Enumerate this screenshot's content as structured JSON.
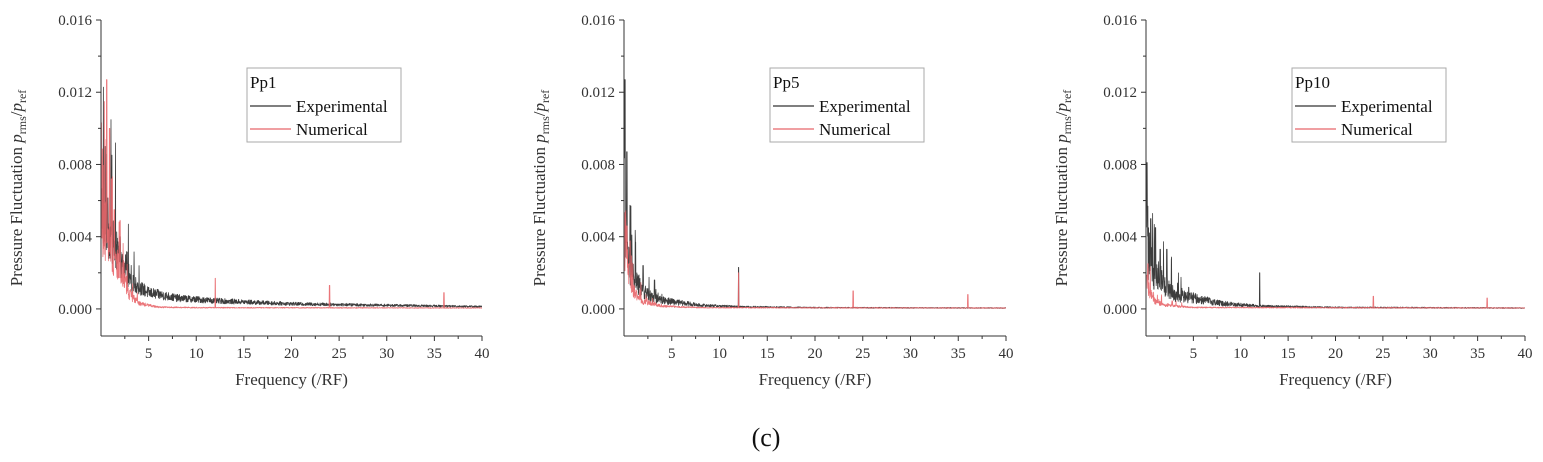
{
  "chart_data": [
    {
      "type": "line",
      "panel": "Pp1",
      "legend_title": "Pp1",
      "legend_position": "top-center",
      "xlabel": "Frequency (/RF)",
      "ylabel_main": "Pressure Fluctuation ",
      "ylabel_p1": "p",
      "ylabel_sub1": "rms",
      "ylabel_slash": "/",
      "ylabel_p2": "p",
      "ylabel_sub2": "ref",
      "xlim": [
        0,
        40
      ],
      "ylim": [
        -0.0015,
        0.016
      ],
      "x_ticks": [
        5,
        10,
        15,
        20,
        25,
        30,
        35,
        40
      ],
      "x_tick_labels": [
        "5",
        "10",
        "15",
        "20",
        "25",
        "30",
        "35",
        "40"
      ],
      "y_ticks": [
        0,
        0.004,
        0.008,
        0.012,
        0.016
      ],
      "y_tick_labels": [
        "0.000",
        "0.004",
        "0.008",
        "0.012",
        "0.016"
      ],
      "series": [
        {
          "name": "Experimental",
          "color": "#333333",
          "base": [
            [
              0.1,
              0.0055
            ],
            [
              0.5,
              0.0045
            ],
            [
              1,
              0.004
            ],
            [
              2,
              0.0027
            ],
            [
              3,
              0.0015
            ],
            [
              5,
              0.0009
            ],
            [
              8,
              0.0006
            ],
            [
              12,
              0.00045
            ],
            [
              20,
              0.00028
            ],
            [
              30,
              0.0002
            ],
            [
              40,
              0.00013
            ]
          ],
          "noise": 0.35,
          "peaks": [
            [
              0.5,
              0.006
            ],
            [
              1.5,
              0.0048
            ],
            [
              2.0,
              0.004
            ],
            [
              2.6,
              0.003
            ]
          ]
        },
        {
          "name": "Numerical",
          "color": "#e8666a",
          "base": [
            [
              0.1,
              0.004
            ],
            [
              0.5,
              0.0045
            ],
            [
              1,
              0.0035
            ],
            [
              2,
              0.0022
            ],
            [
              3,
              0.0008
            ],
            [
              4,
              0.0003
            ],
            [
              6,
              0.0001
            ],
            [
              10,
              7e-05
            ],
            [
              40,
              5e-05
            ]
          ],
          "noise": 0.4,
          "peaks": [
            [
              0.6,
              0.0127
            ],
            [
              0.9,
              0.01
            ],
            [
              1.1,
              0.0072
            ],
            [
              1.4,
              0.0055
            ],
            [
              2.0,
              0.0048
            ],
            [
              12,
              0.0017
            ],
            [
              24,
              0.0013
            ],
            [
              36,
              0.0009
            ]
          ]
        }
      ]
    },
    {
      "type": "line",
      "panel": "Pp5",
      "legend_title": "Pp5",
      "legend_position": "top-center",
      "xlabel": "Frequency (/RF)",
      "ylabel_main": "Pressure Fluctuation ",
      "ylabel_p1": "p",
      "ylabel_sub1": "rms",
      "ylabel_slash": "/",
      "ylabel_p2": "p",
      "ylabel_sub2": "ref",
      "xlim": [
        0,
        40
      ],
      "ylim": [
        -0.0015,
        0.016
      ],
      "x_ticks": [
        5,
        10,
        15,
        20,
        25,
        30,
        35,
        40
      ],
      "x_tick_labels": [
        "5",
        "10",
        "15",
        "20",
        "25",
        "30",
        "35",
        "40"
      ],
      "y_ticks": [
        0,
        0.004,
        0.008,
        0.012,
        0.016
      ],
      "y_tick_labels": [
        "0.000",
        "0.004",
        "0.008",
        "0.012",
        "0.016"
      ],
      "series": [
        {
          "name": "Experimental",
          "color": "#333333",
          "base": [
            [
              0.1,
              0.004
            ],
            [
              0.5,
              0.0025
            ],
            [
              1,
              0.0017
            ],
            [
              2,
              0.001
            ],
            [
              3,
              0.0006
            ],
            [
              5,
              0.0004
            ],
            [
              8,
              0.0002
            ],
            [
              12,
              0.00012
            ],
            [
              20,
              7e-05
            ],
            [
              40,
              5e-05
            ]
          ],
          "noise": 0.45,
          "peaks": [
            [
              0.1,
              0.0127
            ],
            [
              0.3,
              0.0087
            ],
            [
              0.7,
              0.0057
            ],
            [
              1.2,
              0.0037
            ],
            [
              2.0,
              0.0024
            ],
            [
              3.2,
              0.0016
            ],
            [
              12,
              0.0023
            ]
          ]
        },
        {
          "name": "Numerical",
          "color": "#e8666a",
          "base": [
            [
              0.1,
              0.0035
            ],
            [
              0.5,
              0.002
            ],
            [
              1,
              0.001
            ],
            [
              2,
              0.0004
            ],
            [
              4,
              0.00015
            ],
            [
              8,
              7e-05
            ],
            [
              40,
              5e-05
            ]
          ],
          "noise": 0.4,
          "peaks": [
            [
              0.3,
              0.0046
            ],
            [
              12,
              0.002
            ],
            [
              24,
              0.001
            ],
            [
              36,
              0.0008
            ]
          ]
        }
      ]
    },
    {
      "type": "line",
      "panel": "Pp10",
      "legend_title": "Pp10",
      "legend_position": "top-center",
      "xlabel": "Frequency (/RF)",
      "ylabel_main": "Pressure Fluctuation ",
      "ylabel_p1": "p",
      "ylabel_sub1": "rms",
      "ylabel_slash": "/",
      "ylabel_p2": "p",
      "ylabel_sub2": "ref",
      "xlim": [
        0,
        40
      ],
      "ylim": [
        -0.0015,
        0.016
      ],
      "x_ticks": [
        5,
        10,
        15,
        20,
        25,
        30,
        35,
        40
      ],
      "x_tick_labels": [
        "5",
        "10",
        "15",
        "20",
        "25",
        "30",
        "35",
        "40"
      ],
      "y_ticks": [
        0,
        0.004,
        0.008,
        0.012,
        0.016
      ],
      "y_tick_labels": [
        "0.000",
        "0.004",
        "0.008",
        "0.012",
        "0.016"
      ],
      "series": [
        {
          "name": "Experimental",
          "color": "#333333",
          "base": [
            [
              0.1,
              0.0035
            ],
            [
              0.5,
              0.0025
            ],
            [
              1,
              0.002
            ],
            [
              2,
              0.0014
            ],
            [
              3,
              0.0008
            ],
            [
              5,
              0.0006
            ],
            [
              8,
              0.0003
            ],
            [
              12,
              0.00015
            ],
            [
              20,
              8e-05
            ],
            [
              40,
              5e-05
            ]
          ],
          "noise": 0.5,
          "peaks": [
            [
              0.1,
              0.0081
            ],
            [
              0.5,
              0.005
            ],
            [
              1.0,
              0.0045
            ],
            [
              1.5,
              0.0033
            ],
            [
              2.2,
              0.0033
            ],
            [
              4.5,
              0.0012
            ],
            [
              12,
              0.002
            ]
          ]
        },
        {
          "name": "Numerical",
          "color": "#e8666a",
          "base": [
            [
              0.1,
              0.0015
            ],
            [
              0.5,
              0.0008
            ],
            [
              1,
              0.0004
            ],
            [
              2,
              0.0002
            ],
            [
              5,
              8e-05
            ],
            [
              40,
              5e-05
            ]
          ],
          "noise": 0.4,
          "peaks": [
            [
              0.2,
              0.0025
            ],
            [
              24,
              0.0007
            ],
            [
              36,
              0.0006
            ]
          ]
        }
      ]
    }
  ],
  "caption": "(c)"
}
